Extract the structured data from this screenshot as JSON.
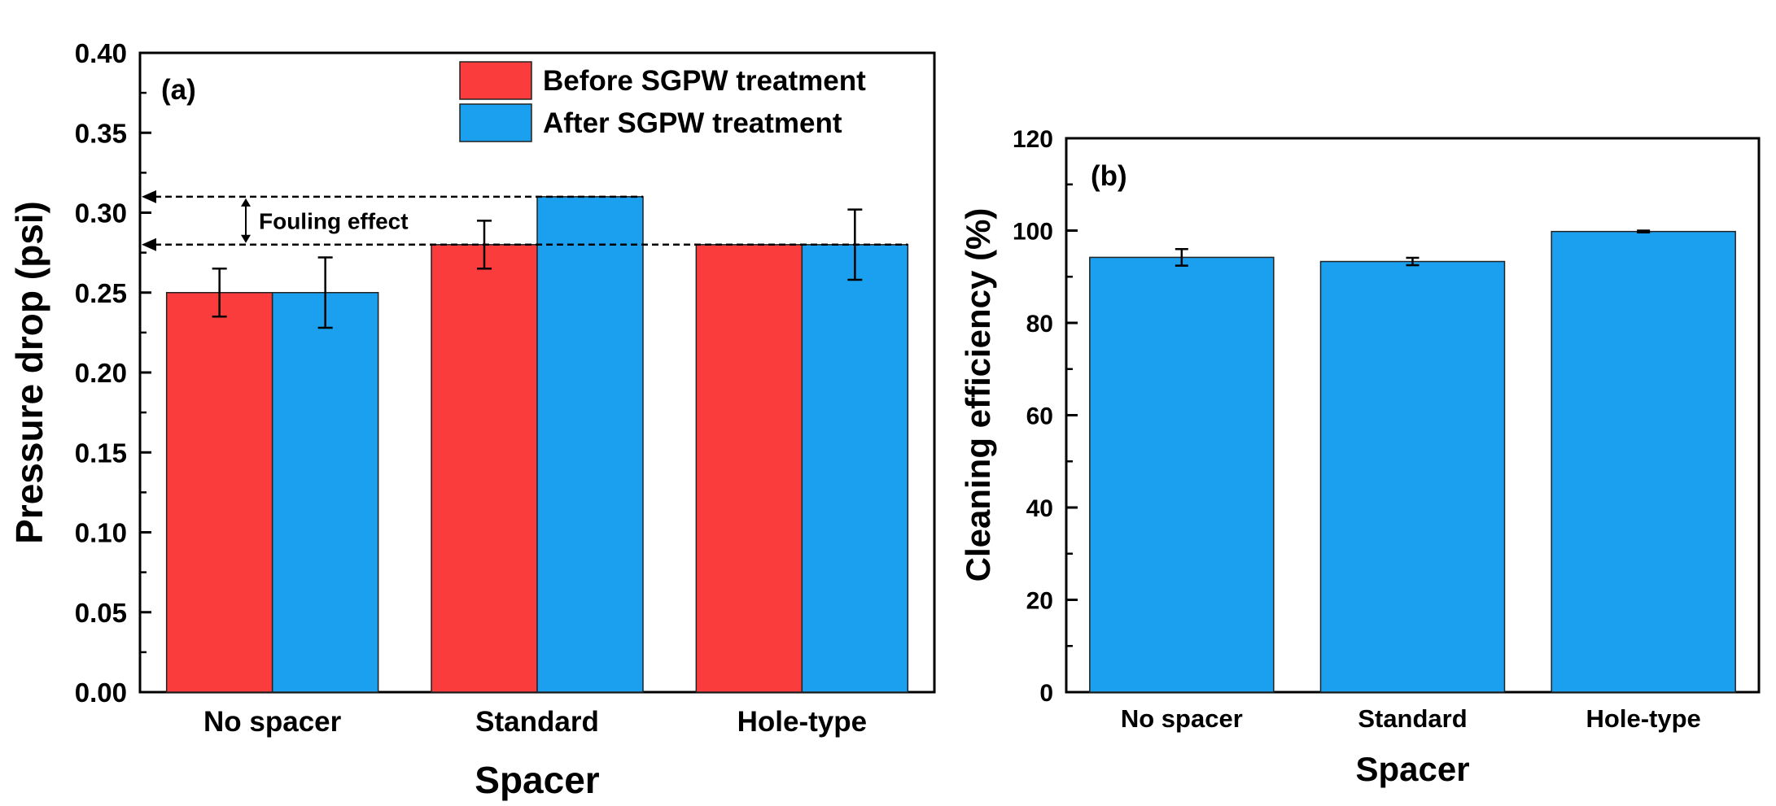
{
  "chart_data": [
    {
      "type": "bar",
      "panel_label": "(a)",
      "categories": [
        "No spacer",
        "Standard",
        "Hole-type"
      ],
      "series": [
        {
          "name": "Before SGPW treatment",
          "values": [
            0.25,
            0.28,
            0.28
          ],
          "errors": [
            0.015,
            0.015,
            0.0
          ],
          "color": "#fa3c3c"
        },
        {
          "name": "After SGPW treatment",
          "values": [
            0.25,
            0.31,
            0.28
          ],
          "errors": [
            0.022,
            0.0,
            0.022
          ],
          "color": "#1aa0ee"
        }
      ],
      "xlabel": "Spacer",
      "ylabel": "Pressure drop (psi)",
      "ylim": [
        0,
        0.4
      ],
      "yticks": [
        "0.00",
        "0.05",
        "0.10",
        "0.15",
        "0.20",
        "0.25",
        "0.30",
        "0.35",
        "0.40"
      ],
      "legend_position": "top-right",
      "annotation": {
        "text": "Fouling effect",
        "from": 0.28,
        "to": 0.31
      }
    },
    {
      "type": "bar",
      "panel_label": "(b)",
      "categories": [
        "No spacer",
        "Standard",
        "Hole-type"
      ],
      "series": [
        {
          "values": [
            94.2,
            93.3,
            99.8
          ],
          "errors": [
            1.8,
            0.8,
            0.2
          ],
          "color": "#1aa0ee"
        }
      ],
      "xlabel": "Spacer",
      "ylabel": "Cleaning efficiency (%)",
      "ylim": [
        0,
        120
      ],
      "yticks": [
        "0",
        "20",
        "40",
        "60",
        "80",
        "100",
        "120"
      ]
    }
  ]
}
